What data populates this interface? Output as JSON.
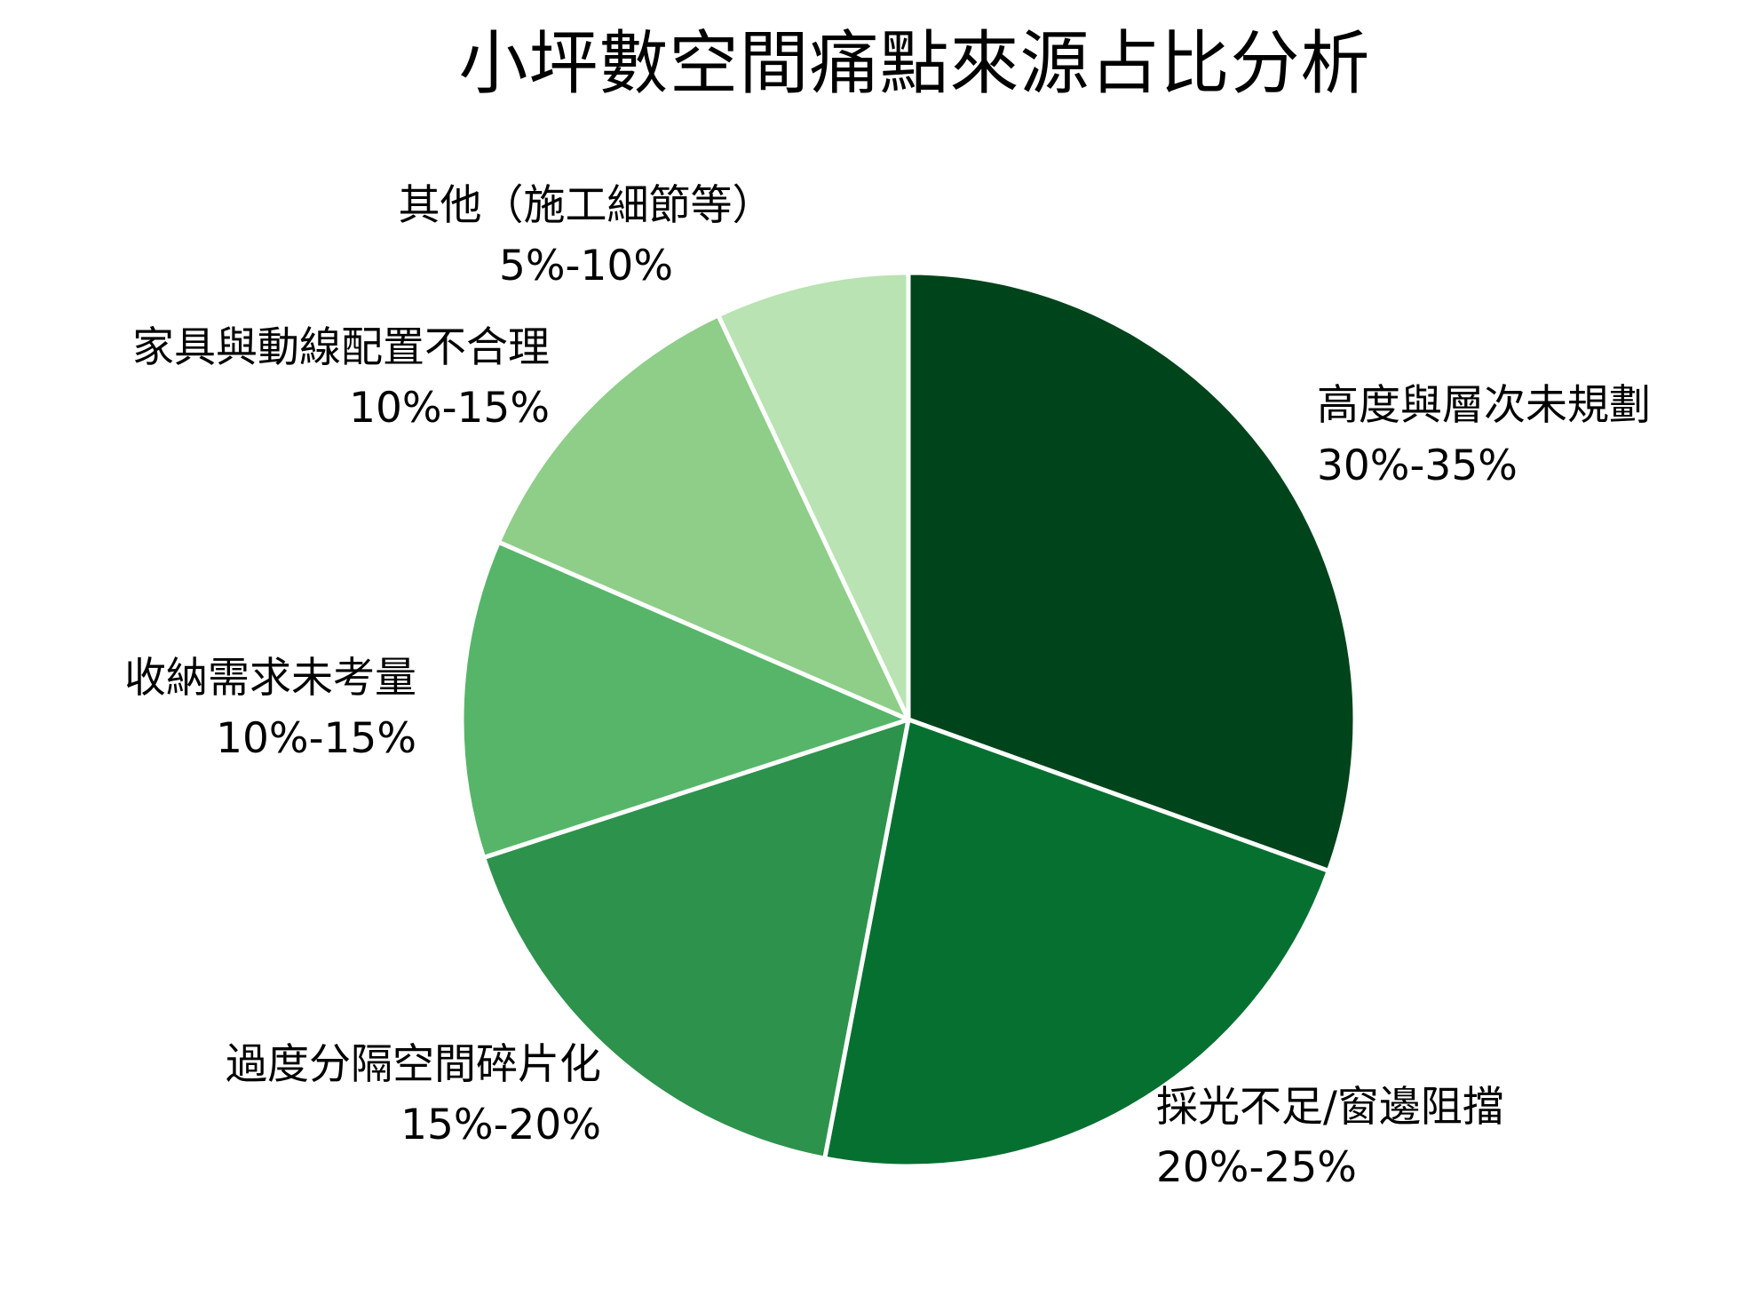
{
  "chart_data": {
    "type": "pie",
    "title": "小坪數空間痛點來源占比分析",
    "start_angle_deg": 0,
    "direction": "clockwise",
    "slices": [
      {
        "name": "高度與層次未規劃",
        "range_label": "30%-35%",
        "value": 30.5,
        "color": "#00441b"
      },
      {
        "name": "採光不足/窗邊阻擋",
        "range_label": "20%-25%",
        "value": 22.5,
        "color": "#067030"
      },
      {
        "name": "過度分隔空間碎片化",
        "range_label": "15%-20%",
        "value": 17.0,
        "color": "#2d924c"
      },
      {
        "name": "收納需求未考量",
        "range_label": "10%-15%",
        "value": 11.5,
        "color": "#56b569"
      },
      {
        "name": "家具與動線配置不合理",
        "range_label": "10%-15%",
        "value": 11.5,
        "color": "#8ece88"
      },
      {
        "name": "其他（施工細節等）",
        "range_label": "5%-10%",
        "value": 7.0,
        "color": "#b9e3b2"
      }
    ]
  }
}
